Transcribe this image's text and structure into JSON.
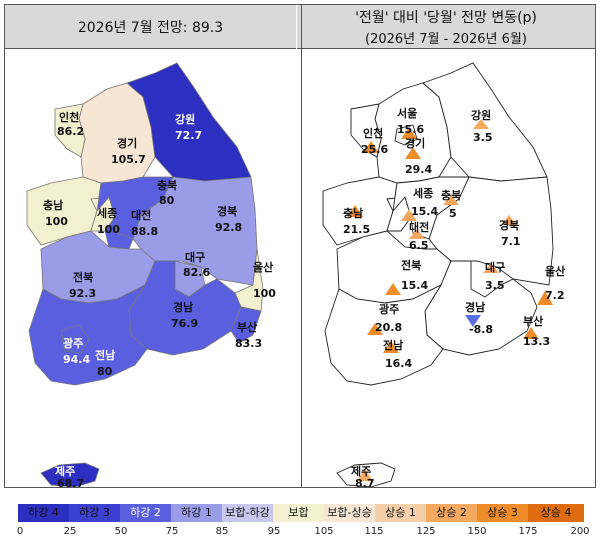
{
  "left_title": "2026년 7월 전망: 89.3",
  "right_title": "'전월' 대비 '당월' 전망 변동(p)",
  "right_subtitle": "(2026년 7월 - 2026년 6월)",
  "colors": {
    "down4": "#2c2fbf",
    "down3": "#3c40d0",
    "down2": "#5a5fe0",
    "down1": "#9a9ce8",
    "neutral_down": "#c8c8ee",
    "neutral": "#f3f0d0",
    "neutral_up": "#f8e6d4",
    "up1": "#f6cfa8",
    "up2": "#f4a860",
    "up3": "#ee8c2a",
    "up4": "#e06c10"
  },
  "regions_left": [
    {
      "id": "incheon",
      "name": "인천",
      "value": "86.2"
    },
    {
      "id": "gangwon",
      "name": "강원",
      "value": "72.7"
    },
    {
      "id": "gyeonggi",
      "name": "경기",
      "value": "105.7"
    },
    {
      "id": "chungbuk",
      "name": "충북",
      "value": "80"
    },
    {
      "id": "chungnam",
      "name": "충남",
      "value": "100"
    },
    {
      "id": "sejong",
      "name": "세종",
      "value": "100"
    },
    {
      "id": "daejeon",
      "name": "대전",
      "value": "88.8"
    },
    {
      "id": "gyeongbuk",
      "name": "경북",
      "value": "92.8"
    },
    {
      "id": "daegu",
      "name": "대구",
      "value": "82.6"
    },
    {
      "id": "ulsan",
      "name": "울산",
      "value": "100"
    },
    {
      "id": "jeonbuk",
      "name": "전북",
      "value": "92.3"
    },
    {
      "id": "gyeongnam",
      "name": "경남",
      "value": "76.9"
    },
    {
      "id": "busan",
      "name": "부산",
      "value": "83.3"
    },
    {
      "id": "gwangju",
      "name": "광주",
      "value": "94.4"
    },
    {
      "id": "jeonnam",
      "name": "전남",
      "value": "80"
    },
    {
      "id": "jeju",
      "name": "제주",
      "value": "68.7"
    }
  ],
  "regions_right": [
    {
      "id": "seoul",
      "name": "서울",
      "value": "15.6"
    },
    {
      "id": "incheon",
      "name": "인천",
      "value": "25.6"
    },
    {
      "id": "gyeonggi",
      "name": "경기",
      "value": "29.4"
    },
    {
      "id": "gangwon",
      "name": "강원",
      "value": "3.5"
    },
    {
      "id": "sejong",
      "name": "세종",
      "value": "15.4"
    },
    {
      "id": "chungbuk",
      "name": "충북",
      "value": "5"
    },
    {
      "id": "chungnam",
      "name": "충남",
      "value": "21.5"
    },
    {
      "id": "daejeon",
      "name": "대전",
      "value": "6.5"
    },
    {
      "id": "gyeongbuk",
      "name": "경북",
      "value": "7.1"
    },
    {
      "id": "jeonbuk",
      "name": "전북",
      "value": "15.4"
    },
    {
      "id": "daegu",
      "name": "대구",
      "value": "3.5"
    },
    {
      "id": "ulsan",
      "name": "울산",
      "value": "7.2"
    },
    {
      "id": "gwangju",
      "name": "광주",
      "value": "20.8"
    },
    {
      "id": "gyeongnam",
      "name": "경남",
      "value": "-8.8"
    },
    {
      "id": "busan",
      "name": "부산",
      "value": "13.3"
    },
    {
      "id": "jeonnam",
      "name": "전남",
      "value": "16.4"
    },
    {
      "id": "jeju",
      "name": "제주",
      "value": "8.7"
    }
  ],
  "legend": [
    {
      "label": "하강 4",
      "color": "#2c2fbf"
    },
    {
      "label": "하강 3",
      "color": "#3c40d0"
    },
    {
      "label": "하강 2",
      "color": "#5a5fe0"
    },
    {
      "label": "하강 1",
      "color": "#9a9ce8"
    },
    {
      "label": "보합-하강",
      "color": "#c8c8ee"
    },
    {
      "label": "보합",
      "color": "#f3f0d0"
    },
    {
      "label": "보합-상승",
      "color": "#f8e6d4"
    },
    {
      "label": "상승 1",
      "color": "#f6cfa8"
    },
    {
      "label": "상승 2",
      "color": "#f4a860"
    },
    {
      "label": "상승 3",
      "color": "#ee8c2a"
    },
    {
      "label": "상승 4",
      "color": "#e06c10"
    }
  ],
  "legend_ticks": [
    "0",
    "25",
    "50",
    "75",
    "85",
    "95",
    "105",
    "115",
    "125",
    "150",
    "175",
    "200"
  ]
}
